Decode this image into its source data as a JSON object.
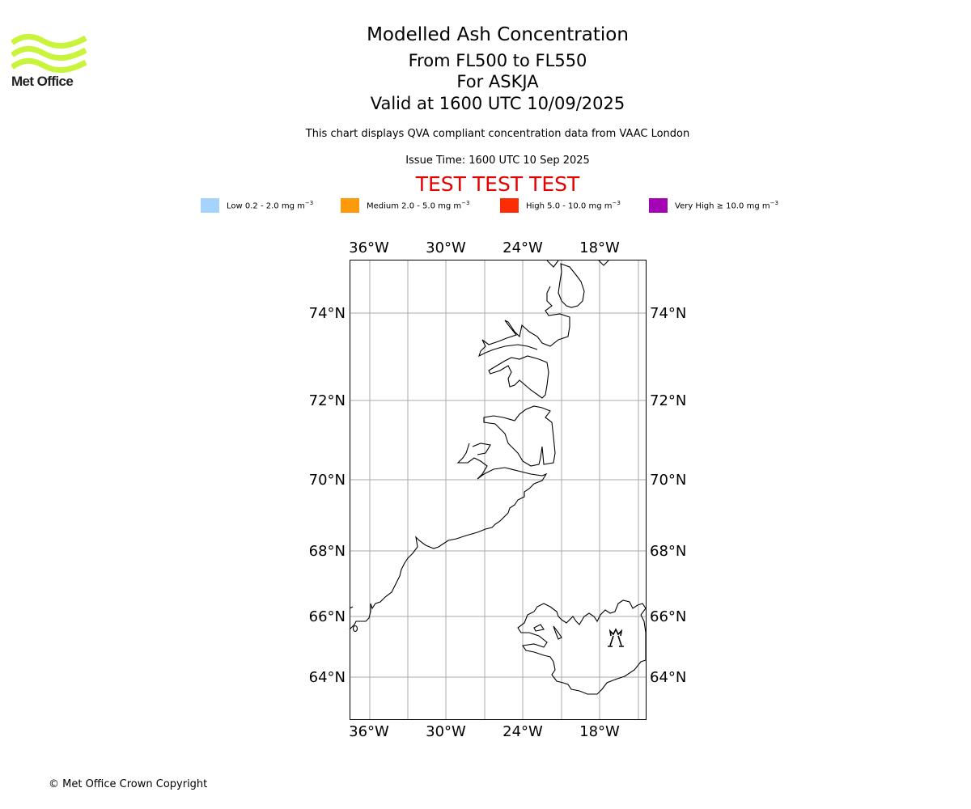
{
  "logo": {
    "text": "Met Office",
    "color": "#c8f53c"
  },
  "header": {
    "title": "Modelled Ash Concentration",
    "levels": "From FL500 to FL550",
    "volcano": "For ASKJA",
    "valid": "Valid at 1600 UTC 10/09/2025",
    "note": "This chart displays QVA compliant concentration data from VAAC London",
    "issue": "Issue Time: 1600 UTC 10 Sep 2025",
    "test_banner": "TEST TEST TEST",
    "test_color": "#e60000"
  },
  "legend": [
    {
      "label": "Low 0.2 - 2.0 mg m",
      "sup": "−3",
      "color": "#a4d4fc"
    },
    {
      "label": "Medium 2.0 - 5.0 mg m",
      "sup": "−3",
      "color": "#fc9a0c"
    },
    {
      "label": "High 5.0 - 10.0 mg m",
      "sup": "−3",
      "color": "#fc2c04"
    },
    {
      "label": "Very High  ≥  10.0 mg m",
      "sup": "−3",
      "color": "#a404b4"
    }
  ],
  "map": {
    "lon_labels": [
      "36°W",
      "30°W",
      "24°W",
      "18°W"
    ],
    "lat_labels": [
      "74°N",
      "72°N",
      "70°N",
      "68°N",
      "66°N",
      "64°N"
    ],
    "volcano_marker_icon": "volcano-icon"
  },
  "footer": {
    "copyright": "© Met Office Crown Copyright"
  }
}
